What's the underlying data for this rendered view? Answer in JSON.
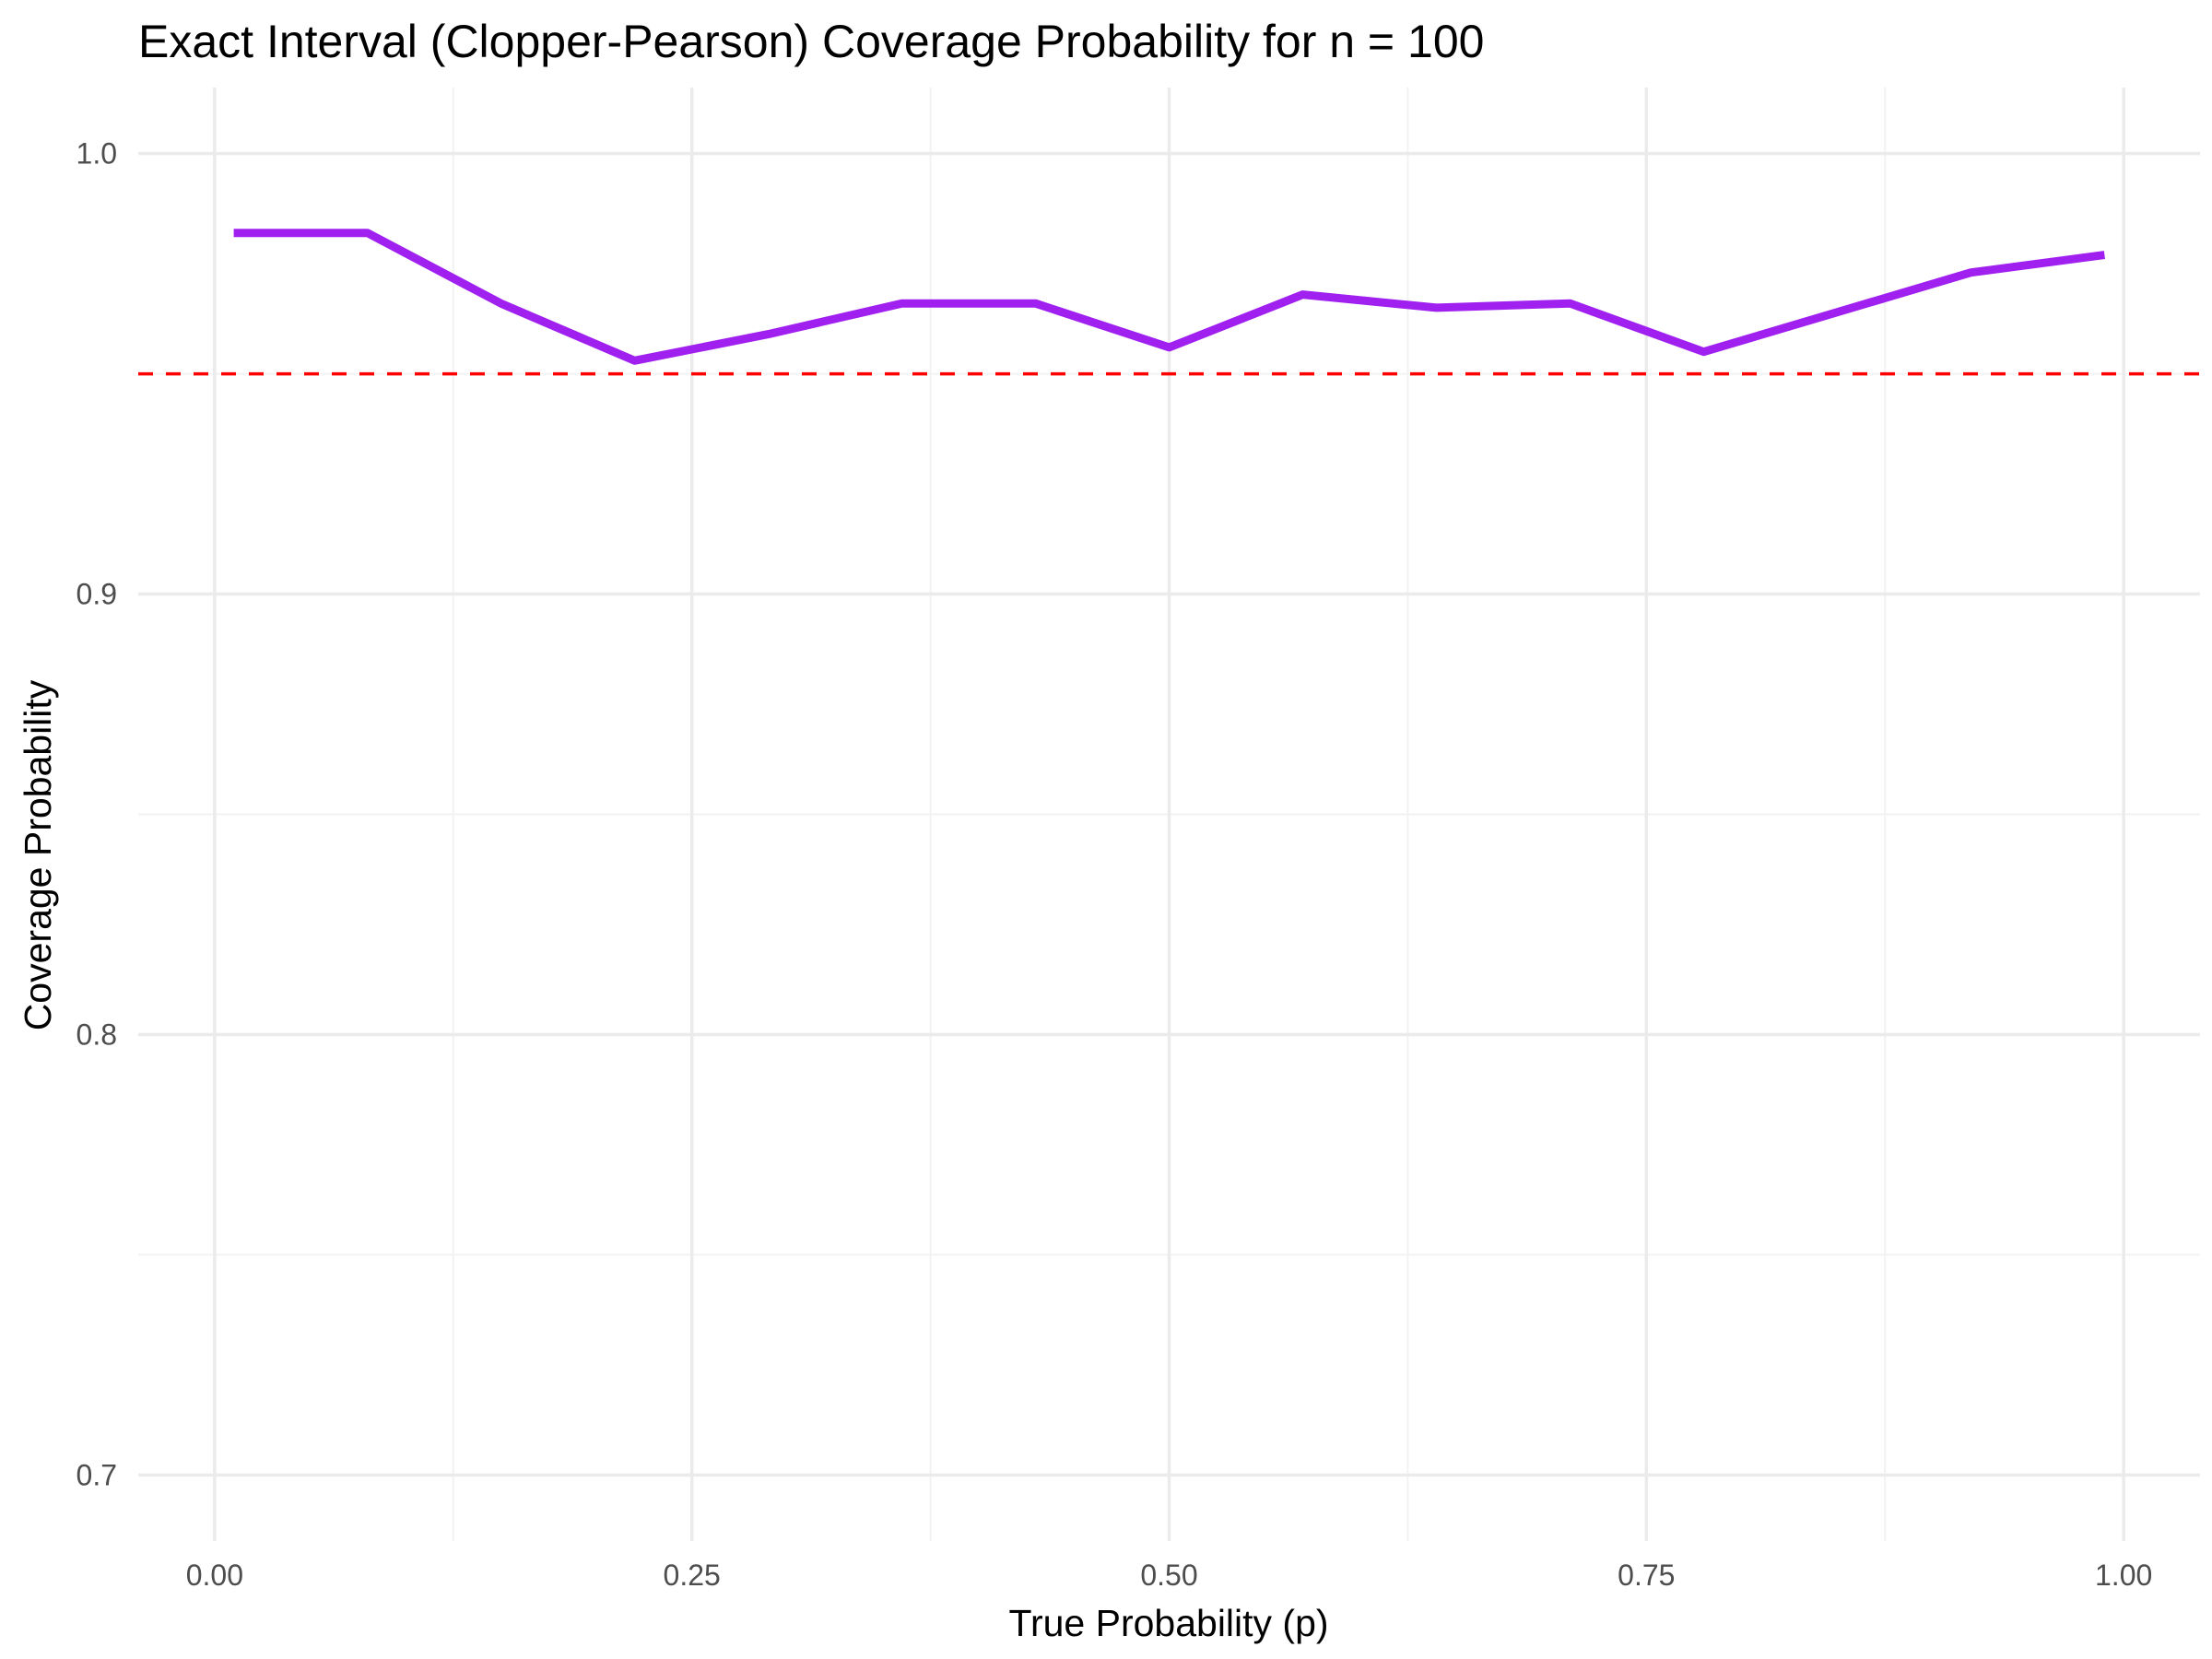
{
  "chart_data": {
    "type": "line",
    "title": "Exact Interval (Clopper-Pearson) Coverage Probability for n = 100",
    "xlabel": "True Probability (p)",
    "ylabel": "Coverage Probability",
    "xlim": [
      -0.04,
      1.04
    ],
    "ylim": [
      0.685,
      1.015
    ],
    "x_ticks": [
      0.0,
      0.25,
      0.5,
      0.75,
      1.0
    ],
    "x_tick_labels": [
      "0.00",
      "0.25",
      "0.50",
      "0.75",
      "1.00"
    ],
    "x_minor_ticks": [
      0.125,
      0.375,
      0.625,
      0.875
    ],
    "y_ticks": [
      0.7,
      0.8,
      0.9,
      1.0
    ],
    "y_tick_labels": [
      "0.7",
      "0.8",
      "0.9",
      "1.0"
    ],
    "y_minor_ticks": [
      0.75,
      0.85,
      0.95
    ],
    "grid": true,
    "series": [
      {
        "color": "#a020f0",
        "x": [
          0.01,
          0.08,
          0.15,
          0.22,
          0.29,
          0.36,
          0.43,
          0.5,
          0.57,
          0.64,
          0.71,
          0.78,
          0.85,
          0.92,
          0.99
        ],
        "y": [
          0.982,
          0.982,
          0.966,
          0.953,
          0.959,
          0.966,
          0.966,
          0.956,
          0.968,
          0.965,
          0.966,
          0.955,
          0.964,
          0.973,
          0.977
        ]
      }
    ],
    "reference_line": {
      "y": 0.95,
      "color": "#ff0000",
      "style": "dashed"
    }
  }
}
